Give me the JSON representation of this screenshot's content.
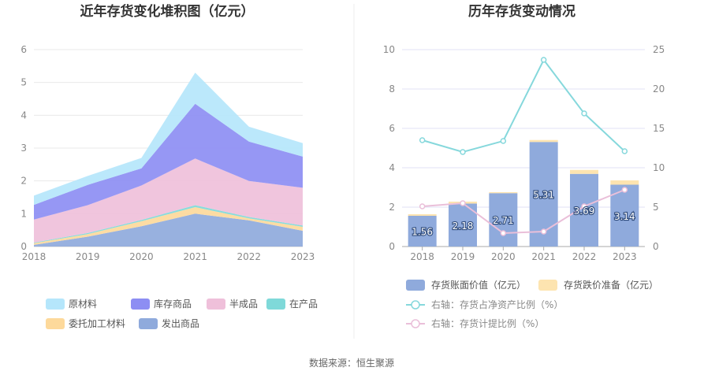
{
  "source_label": "数据来源：恒生聚源",
  "chart_data": [
    {
      "type": "area",
      "stacked": true,
      "title": "近年存货变化堆积图（亿元）",
      "x": [
        "2018",
        "2019",
        "2020",
        "2021",
        "2022",
        "2023"
      ],
      "ylim": [
        0,
        6
      ],
      "yticks": [
        "0",
        "1",
        "2",
        "3",
        "4",
        "5",
        "6"
      ],
      "grid": true,
      "legend_position": "bottom",
      "series": [
        {
          "name": "发出商品",
          "color": "#8faadc",
          "values": [
            0.05,
            0.3,
            0.62,
            1.0,
            0.8,
            0.48
          ]
        },
        {
          "name": "委托加工材料",
          "color": "#fdd99b",
          "values": [
            0.05,
            0.08,
            0.15,
            0.2,
            0.06,
            0.12
          ]
        },
        {
          "name": "在产品",
          "color": "#7fd9d9",
          "values": [
            0.02,
            0.03,
            0.04,
            0.06,
            0.04,
            0.04
          ]
        },
        {
          "name": "半成品",
          "color": "#efc0da",
          "values": [
            0.7,
            0.85,
            1.05,
            1.42,
            1.1,
            1.15
          ]
        },
        {
          "name": "库存商品",
          "color": "#8d8ef3",
          "values": [
            0.45,
            0.62,
            0.52,
            1.67,
            1.2,
            0.95
          ]
        },
        {
          "name": "原材料",
          "color": "#b5e6fb",
          "values": [
            0.28,
            0.27,
            0.32,
            0.95,
            0.45,
            0.41
          ]
        }
      ],
      "legend_order": [
        "原材料",
        "库存商品",
        "半成品",
        "在产品",
        "委托加工材料",
        "发出商品"
      ]
    },
    {
      "type": "bar",
      "title": "历年存货变动情况",
      "categories": [
        "2018",
        "2019",
        "2020",
        "2021",
        "2022",
        "2023"
      ],
      "ylim": [
        0,
        10
      ],
      "yticks": [
        "0",
        "2",
        "4",
        "6",
        "8",
        "10"
      ],
      "y2lim": [
        0,
        25
      ],
      "y2ticks": [
        "0",
        "5",
        "10",
        "15",
        "20",
        "25"
      ],
      "legend_position": "bottom",
      "series": [
        {
          "name": "存货账面价值（亿元）",
          "kind": "bar",
          "axis": "left",
          "color": "#8faadc",
          "values": [
            1.56,
            2.18,
            2.71,
            5.31,
            3.69,
            3.14
          ],
          "labels": [
            "1.56",
            "2.18",
            "2.71",
            "5.31",
            "3.69",
            "3.14"
          ]
        },
        {
          "name": "存货跌价准备（亿元）",
          "kind": "bar",
          "axis": "left",
          "color": "#fde4b0",
          "values": [
            0.08,
            0.1,
            0.05,
            0.1,
            0.2,
            0.22
          ]
        },
        {
          "name": "右轴：存货占净资产比例（%）",
          "kind": "line",
          "axis": "right",
          "color": "#86d8dc",
          "values": [
            13.5,
            12.0,
            13.4,
            23.7,
            16.9,
            12.1
          ]
        },
        {
          "name": "右轴：存货计提比例（%）",
          "kind": "line",
          "axis": "right",
          "color": "#eabfd9",
          "values": [
            5.1,
            5.5,
            1.7,
            1.9,
            5.1,
            7.2
          ]
        }
      ]
    }
  ]
}
